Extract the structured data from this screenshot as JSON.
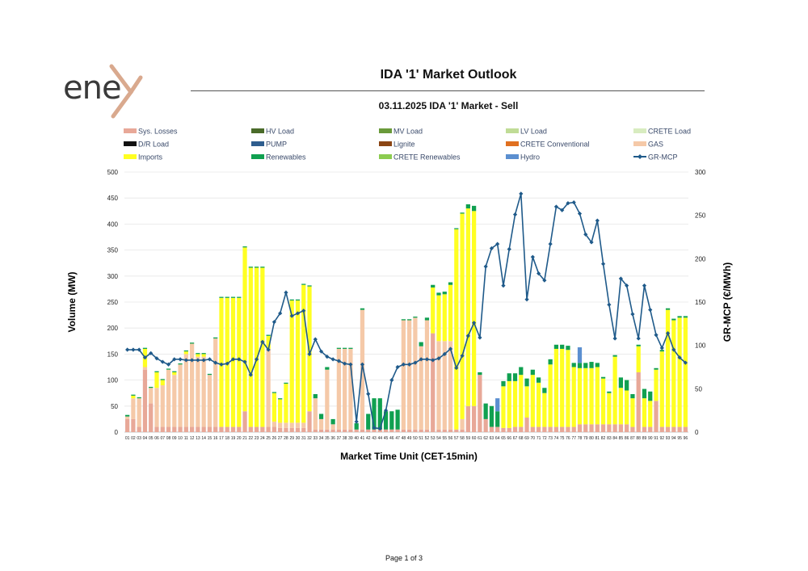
{
  "report": {
    "title": "IDA '1' Market Outlook",
    "subtitle": "03.11.2025  IDA '1' Market - Sell",
    "footer": "Page 1 of 3",
    "logo_text": "ene"
  },
  "colors": {
    "logo_x": "#d9a98e",
    "grid": "#e6e6e6",
    "line": "#1f5a8a"
  },
  "chart_data": {
    "type": "bar",
    "subtype": "stacked bar with line on secondary axis",
    "xlabel": "Market Time Unit (CET-15min)",
    "ylabel": "Volume (MW)",
    "y2label": "GR-MCP (€/MWh)",
    "ylim": [
      0,
      500
    ],
    "y2lim": [
      0,
      300
    ],
    "yticks": [
      0,
      50,
      100,
      150,
      200,
      250,
      300,
      350,
      400,
      450,
      500
    ],
    "y2ticks": [
      0,
      50,
      100,
      150,
      200,
      250,
      300
    ],
    "grid": true,
    "legend_position": "top",
    "legend": [
      {
        "name": "Sys. Losses",
        "color": "#e8a898",
        "kind": "bar"
      },
      {
        "name": "HV Load",
        "color": "#4a6b2a",
        "kind": "bar"
      },
      {
        "name": "MV Load",
        "color": "#6a9a3a",
        "kind": "bar"
      },
      {
        "name": "LV Load",
        "color": "#c0dc96",
        "kind": "bar"
      },
      {
        "name": "CRETE Load",
        "color": "#d8ecc0",
        "kind": "bar"
      },
      {
        "name": "D/R Load",
        "color": "#111111",
        "kind": "bar"
      },
      {
        "name": "PUMP",
        "color": "#2e5d8e",
        "kind": "bar"
      },
      {
        "name": "Lignite",
        "color": "#8b4513",
        "kind": "bar"
      },
      {
        "name": "CRETE Conventional",
        "color": "#e07020",
        "kind": "bar"
      },
      {
        "name": "GAS",
        "color": "#f5c9a8",
        "kind": "bar"
      },
      {
        "name": "Imports",
        "color": "#ffff22",
        "kind": "bar"
      },
      {
        "name": "Renewables",
        "color": "#10a050",
        "kind": "bar"
      },
      {
        "name": "CRETE Renewables",
        "color": "#8ccc50",
        "kind": "bar"
      },
      {
        "name": "Hydro",
        "color": "#5b8fd0",
        "kind": "bar"
      },
      {
        "name": "GR-MCP",
        "color": "#1f5a8a",
        "kind": "line"
      }
    ],
    "categories": [
      "01",
      "02",
      "03",
      "04",
      "05",
      "06",
      "07",
      "08",
      "09",
      "10",
      "11",
      "12",
      "13",
      "14",
      "15",
      "16",
      "17",
      "18",
      "19",
      "20",
      "21",
      "22",
      "23",
      "24",
      "25",
      "26",
      "27",
      "28",
      "29",
      "30",
      "31",
      "32",
      "33",
      "34",
      "35",
      "36",
      "37",
      "38",
      "39",
      "40",
      "41",
      "42",
      "43",
      "44",
      "45",
      "46",
      "47",
      "48",
      "49",
      "50",
      "51",
      "52",
      "53",
      "54",
      "55",
      "56",
      "57",
      "58",
      "59",
      "60",
      "61",
      "62",
      "63",
      "64",
      "65",
      "66",
      "67",
      "68",
      "69",
      "70",
      "71",
      "72",
      "73",
      "74",
      "75",
      "76",
      "77",
      "78",
      "79",
      "80",
      "81",
      "82",
      "83",
      "84",
      "85",
      "86",
      "87",
      "88",
      "89",
      "90",
      "91",
      "92",
      "93",
      "94",
      "95",
      "96"
    ],
    "series": [
      {
        "name": "Sys. Losses",
        "values": [
          25,
          25,
          10,
          120,
          55,
          10,
          10,
          10,
          10,
          10,
          10,
          10,
          10,
          10,
          10,
          10,
          10,
          10,
          10,
          10,
          40,
          10,
          10,
          10,
          10,
          10,
          8,
          8,
          8,
          8,
          8,
          40,
          5,
          5,
          5,
          5,
          5,
          5,
          5,
          5,
          5,
          5,
          5,
          5,
          5,
          5,
          5,
          5,
          5,
          5,
          5,
          5,
          190,
          5,
          5,
          5,
          5,
          5,
          50,
          50,
          110,
          25,
          10,
          10,
          8,
          8,
          10,
          10,
          28,
          10,
          10,
          10,
          10,
          10,
          10,
          10,
          10,
          15,
          15,
          15,
          15,
          15,
          15,
          15,
          15,
          15,
          10,
          115,
          10,
          10,
          60,
          10,
          10,
          10,
          10,
          10
        ]
      },
      {
        "name": "GAS",
        "values": [
          5,
          40,
          55,
          5,
          30,
          75,
          80,
          110,
          100,
          120,
          140,
          160,
          135,
          135,
          100,
          170,
          0,
          0,
          0,
          0,
          0,
          0,
          0,
          0,
          150,
          10,
          10,
          10,
          10,
          10,
          10,
          0,
          60,
          20,
          115,
          10,
          155,
          155,
          155,
          0,
          230,
          0,
          0,
          0,
          0,
          0,
          0,
          210,
          210,
          215,
          160,
          210,
          0,
          170,
          170,
          170,
          0,
          20,
          0,
          0,
          0,
          0,
          0,
          0,
          0,
          0,
          0,
          0,
          0,
          0,
          0,
          0,
          0,
          0,
          0,
          0,
          0,
          0,
          0,
          0,
          0,
          0,
          0,
          0,
          0,
          0,
          0,
          0,
          0,
          0,
          0,
          0,
          0,
          0,
          0,
          0
        ]
      },
      {
        "name": "Imports",
        "values": [
          0,
          5,
          0,
          35,
          0,
          30,
          10,
          0,
          5,
          0,
          5,
          0,
          5,
          5,
          0,
          0,
          248,
          248,
          248,
          248,
          315,
          306,
          306,
          306,
          25,
          55,
          45,
          75,
          235,
          235,
          265,
          240,
          0,
          0,
          0,
          0,
          0,
          0,
          0,
          0,
          0,
          0,
          0,
          0,
          0,
          0,
          0,
          0,
          0,
          0,
          0,
          0,
          88,
          88,
          90,
          108,
          385,
          395,
          380,
          375,
          0,
          0,
          0,
          0,
          80,
          90,
          88,
          100,
          60,
          100,
          85,
          65,
          120,
          150,
          150,
          148,
          115,
          108,
          108,
          108,
          110,
          88,
          60,
          130,
          70,
          65,
          55,
          50,
          55,
          50,
          60,
          145,
          225,
          205,
          210,
          210
        ]
      },
      {
        "name": "Renewables",
        "values": [
          3,
          2,
          2,
          2,
          2,
          2,
          2,
          2,
          2,
          2,
          2,
          2,
          2,
          2,
          2,
          2,
          2,
          2,
          2,
          2,
          2,
          2,
          2,
          2,
          2,
          2,
          2,
          2,
          2,
          2,
          2,
          2,
          8,
          10,
          5,
          10,
          2,
          2,
          2,
          12,
          3,
          30,
          60,
          60,
          35,
          35,
          38,
          2,
          2,
          2,
          8,
          5,
          5,
          5,
          5,
          5,
          2,
          2,
          8,
          10,
          5,
          30,
          40,
          30,
          10,
          15,
          15,
          15,
          15,
          10,
          10,
          10,
          10,
          8,
          8,
          8,
          8,
          10,
          10,
          12,
          8,
          3,
          3,
          3,
          20,
          20,
          8,
          3,
          18,
          18,
          3,
          3,
          3,
          3,
          3,
          3
        ]
      },
      {
        "name": "Hydro",
        "values": [
          0,
          0,
          0,
          0,
          0,
          0,
          0,
          0,
          0,
          0,
          0,
          0,
          0,
          0,
          0,
          0,
          0,
          0,
          0,
          0,
          0,
          0,
          0,
          0,
          0,
          0,
          0,
          0,
          0,
          0,
          0,
          0,
          0,
          0,
          0,
          0,
          0,
          0,
          0,
          0,
          0,
          0,
          0,
          0,
          0,
          0,
          0,
          0,
          0,
          0,
          0,
          0,
          0,
          0,
          0,
          0,
          0,
          0,
          0,
          0,
          0,
          0,
          0,
          25,
          0,
          0,
          0,
          0,
          0,
          0,
          0,
          0,
          0,
          0,
          0,
          0,
          0,
          30,
          0,
          0,
          0,
          0,
          0,
          0,
          0,
          0,
          0,
          0,
          0,
          0,
          0,
          0,
          0,
          0,
          0,
          0
        ]
      },
      {
        "name": "GR-MCP",
        "axis": "secondary",
        "values": [
          95,
          95,
          95,
          86,
          91,
          85,
          81,
          78,
          84,
          84,
          83,
          83,
          83,
          83,
          84,
          80,
          78,
          79,
          84,
          84,
          81,
          66,
          84,
          104,
          95,
          127,
          137,
          161,
          134,
          137,
          140,
          90,
          107,
          93,
          87,
          84,
          82,
          79,
          78,
          12,
          78,
          44,
          5,
          4,
          25,
          60,
          75,
          78,
          78,
          80,
          84,
          84,
          83,
          85,
          90,
          96,
          74,
          88,
          111,
          126,
          109,
          191,
          212,
          217,
          169,
          211,
          251,
          275,
          153,
          202,
          183,
          175,
          217,
          260,
          256,
          264,
          265,
          252,
          228,
          219,
          244,
          194,
          147,
          108,
          177,
          169,
          136,
          108,
          169,
          141,
          112,
          97,
          114,
          95,
          86,
          80
        ]
      }
    ]
  }
}
